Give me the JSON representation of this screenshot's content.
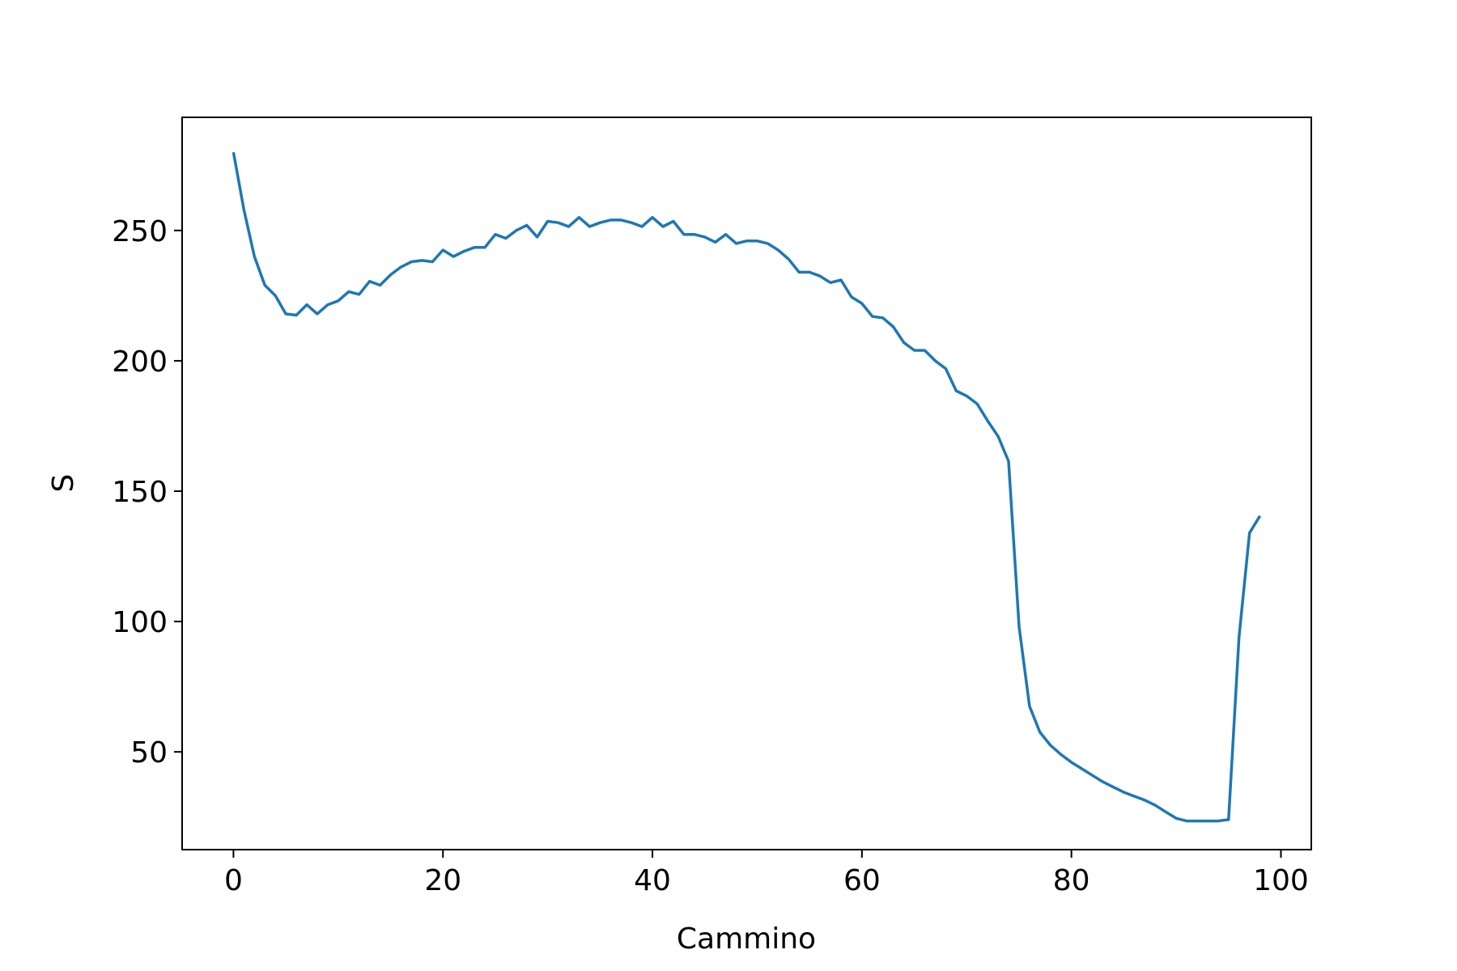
{
  "chart_data": {
    "type": "line",
    "title": "",
    "xlabel": "Cammino",
    "ylabel": "S",
    "xlim": [
      -4.9,
      102.9
    ],
    "ylim": [
      12.5,
      293.4
    ],
    "xticks": [
      0,
      20,
      40,
      60,
      80,
      100
    ],
    "yticks": [
      50,
      100,
      150,
      200,
      250
    ],
    "grid": false,
    "series": [
      {
        "color": "#1f77b4",
        "x": [
          0,
          1,
          2,
          3,
          4,
          5,
          6,
          7,
          8,
          9,
          10,
          11,
          12,
          13,
          14,
          15,
          16,
          17,
          18,
          19,
          20,
          21,
          22,
          23,
          24,
          25,
          26,
          27,
          28,
          29,
          30,
          31,
          32,
          33,
          34,
          35,
          36,
          37,
          38,
          39,
          40,
          41,
          42,
          43,
          44,
          45,
          46,
          47,
          48,
          49,
          50,
          51,
          52,
          53,
          54,
          55,
          56,
          57,
          58,
          59,
          60,
          61,
          62,
          63,
          64,
          65,
          66,
          67,
          68,
          69,
          70,
          71,
          72,
          73,
          74,
          75,
          76,
          77,
          78,
          79,
          80,
          81,
          82,
          83,
          84,
          85,
          86,
          87,
          88,
          89,
          90,
          91,
          92,
          93,
          94,
          95,
          96,
          97,
          98
        ],
        "y": [
          280,
          258,
          240,
          229,
          225,
          218,
          217.5,
          221.5,
          218,
          221.5,
          223,
          226.5,
          225.5,
          230.5,
          229,
          233,
          236,
          238,
          238.5,
          238,
          242.5,
          240,
          242,
          243.5,
          243.5,
          248.5,
          247,
          250,
          252,
          247.5,
          253.5,
          253,
          251.5,
          255,
          251.5,
          253,
          254,
          254,
          253,
          251.5,
          255,
          251.5,
          253.5,
          248.5,
          248.5,
          247.5,
          245.5,
          248.5,
          245,
          246,
          246,
          245,
          242.5,
          239,
          234,
          234,
          232.5,
          230,
          231,
          224.5,
          222,
          217,
          216.5,
          213,
          207,
          204,
          204,
          200,
          197,
          188.5,
          186.5,
          183.5,
          177,
          171,
          161.5,
          98,
          67.5,
          57.5,
          52.5,
          49,
          46,
          43.5,
          41,
          38.5,
          36.5,
          34.5,
          33,
          31.5,
          29.5,
          27,
          24.5,
          23.5,
          23.5,
          23.5,
          23.5,
          24,
          94,
          134,
          140.5
        ]
      }
    ]
  }
}
